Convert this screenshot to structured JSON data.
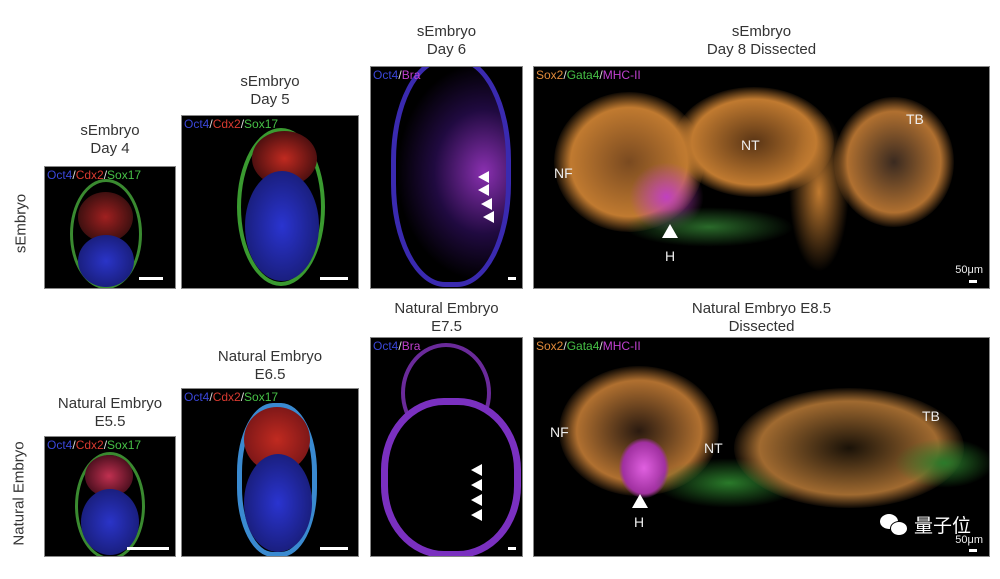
{
  "row_labels": {
    "top": "sEmbryo",
    "bottom": "Natural Embryo"
  },
  "panels": {
    "s_day4": {
      "title1": "sEmbryo",
      "title2": "Day 4",
      "stains": [
        "Oct4",
        "Cdx2",
        "Sox17"
      ]
    },
    "s_day5": {
      "title1": "sEmbryo",
      "title2": "Day 5",
      "stains": [
        "Oct4",
        "Cdx2",
        "Sox17"
      ]
    },
    "s_day6": {
      "title1": "sEmbryo",
      "title2": "Day 6",
      "stains": [
        "Oct4",
        "Bra"
      ]
    },
    "s_day8": {
      "title1": "sEmbryo",
      "title2": "Day 8 Dissected",
      "stains": [
        "Sox2",
        "Gata4",
        "MHC-II"
      ],
      "labels": {
        "nf": "NF",
        "nt": "NT",
        "tb": "TB",
        "h": "H"
      },
      "scale": "50μm"
    },
    "n_e55": {
      "title1": "Natural Embryo",
      "title2": "E5.5",
      "stains": [
        "Oct4",
        "Cdx2",
        "Sox17"
      ]
    },
    "n_e65": {
      "title1": "Natural Embryo",
      "title2": "E6.5",
      "stains": [
        "Oct4",
        "Cdx2",
        "Sox17"
      ]
    },
    "n_e75": {
      "title1": "Natural Embryo",
      "title2": "E7.5",
      "stains": [
        "Oct4",
        "Bra"
      ]
    },
    "n_e85": {
      "title1": "Natural Embryo E8.5",
      "title2": "Dissected",
      "stains": [
        "Sox2",
        "Gata4",
        "MHC-II"
      ],
      "labels": {
        "nf": "NF",
        "nt": "NT",
        "tb": "TB",
        "h": "H"
      },
      "scale": "50μm"
    }
  },
  "sep": "/",
  "watermark": "量子位",
  "colors": {
    "oct4": "#3a46d8",
    "cdx2": "#d83a30",
    "sox17": "#46c046",
    "bra": "#c040d0",
    "sox2": "#e08a3a",
    "gata4": "#46c046",
    "mhc": "#c040d0"
  }
}
